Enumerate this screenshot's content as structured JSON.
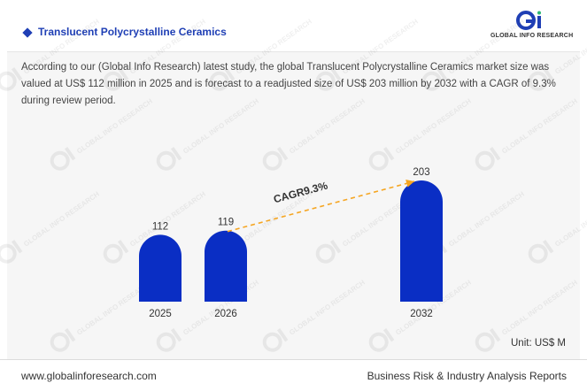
{
  "header": {
    "title": "Translucent Polycrystalline Ceramics",
    "logo_text": "GLOBAL INFO RESEARCH"
  },
  "description": "According to our (Global Info Research) latest study, the global Translucent Polycrystalline Ceramics market size was valued at US$ 112 million in 2025 and is forecast to a readjusted size of US$ 203 million by 2032 with a CAGR of 9.3% during review period.",
  "chart_data": {
    "type": "bar",
    "categories": [
      "2025",
      "2026",
      "2032"
    ],
    "values": [
      112,
      119,
      203
    ],
    "cagr_label": "CAGR9.3%",
    "unit_label": "Unit: US$ M",
    "bar_color": "#0a2ec4",
    "arrow_color": "#f5a623"
  },
  "watermark_text": "GLOBAL INFO RESEARCH",
  "footer": {
    "left": "www.globalinforesearch.com",
    "right": "Business Risk & Industry Analysis Reports"
  }
}
